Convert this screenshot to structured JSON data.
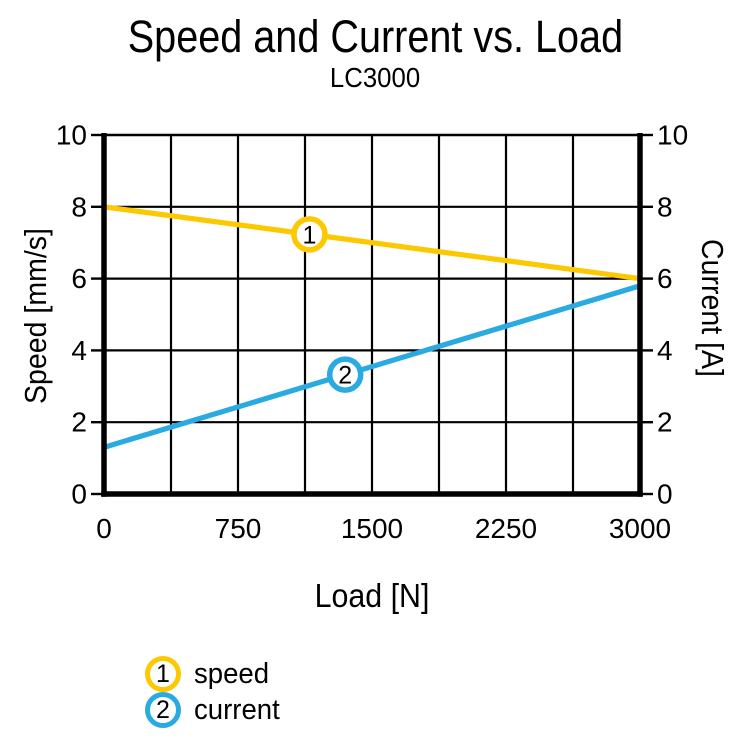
{
  "chart_data": {
    "type": "line",
    "title": "Speed and Current vs. Load",
    "subtitle": "LC3000",
    "xlabel": "Load [N]",
    "ylabel_left": "Speed [mm/s]",
    "ylabel_right": "Current [A]",
    "xlim": [
      0,
      3000
    ],
    "ylim_left": [
      0,
      10
    ],
    "ylim_right": [
      0,
      10
    ],
    "x_ticks": [
      0,
      750,
      1500,
      2250,
      3000
    ],
    "y_ticks_left": [
      0,
      2,
      4,
      6,
      8,
      10
    ],
    "y_ticks_right": [
      0,
      2,
      4,
      6,
      8,
      10
    ],
    "x_grid_step": 375,
    "y_grid_step": 2,
    "grid": true,
    "axis_color": "#000000",
    "series": [
      {
        "name": "speed",
        "marker_number": "1",
        "color": "#FCC800",
        "axis": "left",
        "x": [
          0,
          3000
        ],
        "y": [
          8,
          6
        ],
        "marker_x": 1150
      },
      {
        "name": "current",
        "marker_number": "2",
        "color": "#29ABE2",
        "axis": "right",
        "x": [
          0,
          3000
        ],
        "y": [
          1.3,
          5.8
        ],
        "marker_x": 1350
      }
    ],
    "legend": {
      "position": "bottom-left",
      "items": [
        {
          "number": "1",
          "label": "speed",
          "color": "#FCC800"
        },
        {
          "number": "2",
          "label": "current",
          "color": "#29ABE2"
        }
      ]
    }
  }
}
